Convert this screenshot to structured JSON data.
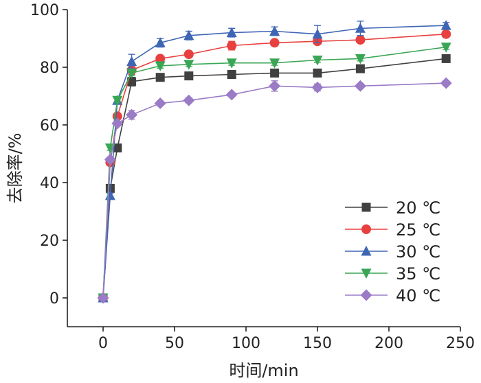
{
  "chart_data": {
    "type": "line",
    "title": "",
    "xlabel": "时间/min",
    "ylabel": "去除率/%",
    "xlim": [
      -25,
      250
    ],
    "ylim": [
      -10,
      100
    ],
    "xticks": [
      0,
      50,
      100,
      150,
      200,
      250
    ],
    "yticks": [
      0,
      20,
      40,
      60,
      80,
      100
    ],
    "grid": false,
    "legend_position": "bottom-right",
    "x": [
      0,
      5,
      10,
      20,
      40,
      60,
      90,
      120,
      150,
      180,
      240
    ],
    "series": [
      {
        "name": "20 ℃",
        "color": "#404040",
        "marker": "square",
        "values": [
          0,
          38,
          52,
          75,
          76.5,
          77,
          77.5,
          78,
          78,
          79.5,
          83
        ],
        "errors": [
          0,
          0.8,
          0.8,
          1.5,
          0.8,
          0.8,
          0.8,
          1,
          1,
          1,
          0.8
        ]
      },
      {
        "name": "25 ℃",
        "color": "#e8403f",
        "marker": "circle",
        "values": [
          0,
          47,
          63,
          79,
          83,
          84.5,
          87.5,
          88.5,
          89,
          89.5,
          91.5
        ],
        "errors": [
          0,
          0.8,
          0.8,
          1.5,
          0.8,
          0.8,
          1.5,
          0.8,
          0.8,
          0.8,
          0.8
        ]
      },
      {
        "name": "30 ℃",
        "color": "#3f66b5",
        "marker": "triangle-up",
        "values": [
          0,
          35.5,
          68.5,
          82,
          88.5,
          91,
          92,
          92.5,
          91.5,
          93.5,
          94.5
        ],
        "errors": [
          0,
          0.8,
          1,
          2.5,
          1.5,
          1.5,
          1.5,
          1.5,
          3,
          2.5,
          1
        ]
      },
      {
        "name": "35 ℃",
        "color": "#3aa655",
        "marker": "triangle-down",
        "values": [
          0,
          52,
          68.5,
          78,
          80.5,
          81,
          81.5,
          81.5,
          82.5,
          83,
          87
        ],
        "errors": [
          0,
          0.8,
          0.8,
          0.8,
          0.8,
          0.8,
          0.8,
          0.8,
          0.8,
          0.8,
          0.8
        ]
      },
      {
        "name": "40 ℃",
        "color": "#9a7bc6",
        "marker": "diamond",
        "values": [
          0,
          48,
          60.5,
          63.5,
          67.5,
          68.5,
          70.5,
          73.5,
          73,
          73.5,
          74.5
        ],
        "errors": [
          0,
          0.8,
          0.8,
          1.5,
          0.8,
          0.8,
          0.8,
          1.8,
          1.2,
          0.8,
          0.8
        ]
      }
    ]
  }
}
